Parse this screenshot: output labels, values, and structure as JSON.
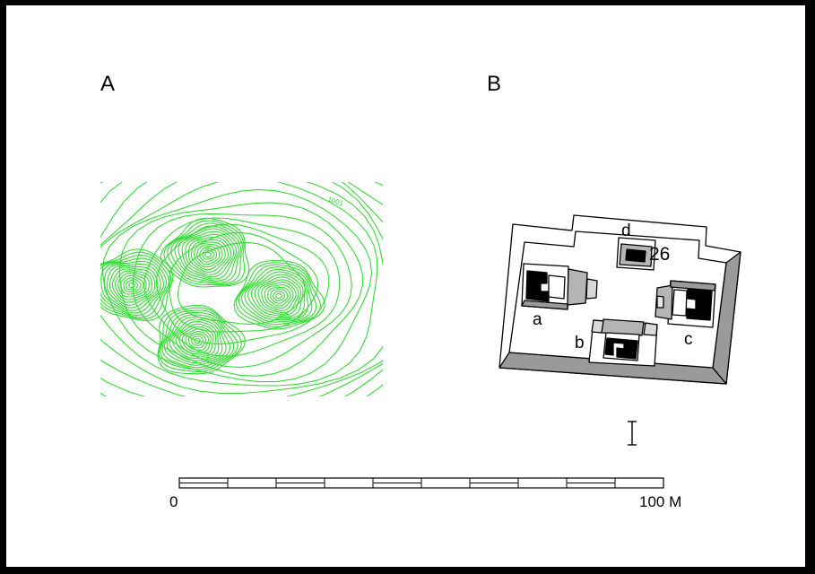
{
  "panels": {
    "a": "A",
    "b": "B"
  },
  "contour_map": {
    "contour_color": "#33dd33",
    "elevation_label": "1001"
  },
  "plan": {
    "structure_number": "26",
    "mounds": {
      "a": "a",
      "b": "b",
      "c": "c",
      "d": "d"
    }
  },
  "north_marker": {
    "glyph": "I"
  },
  "scale_bar": {
    "start": "0",
    "end": "100 M",
    "segments": 10
  }
}
